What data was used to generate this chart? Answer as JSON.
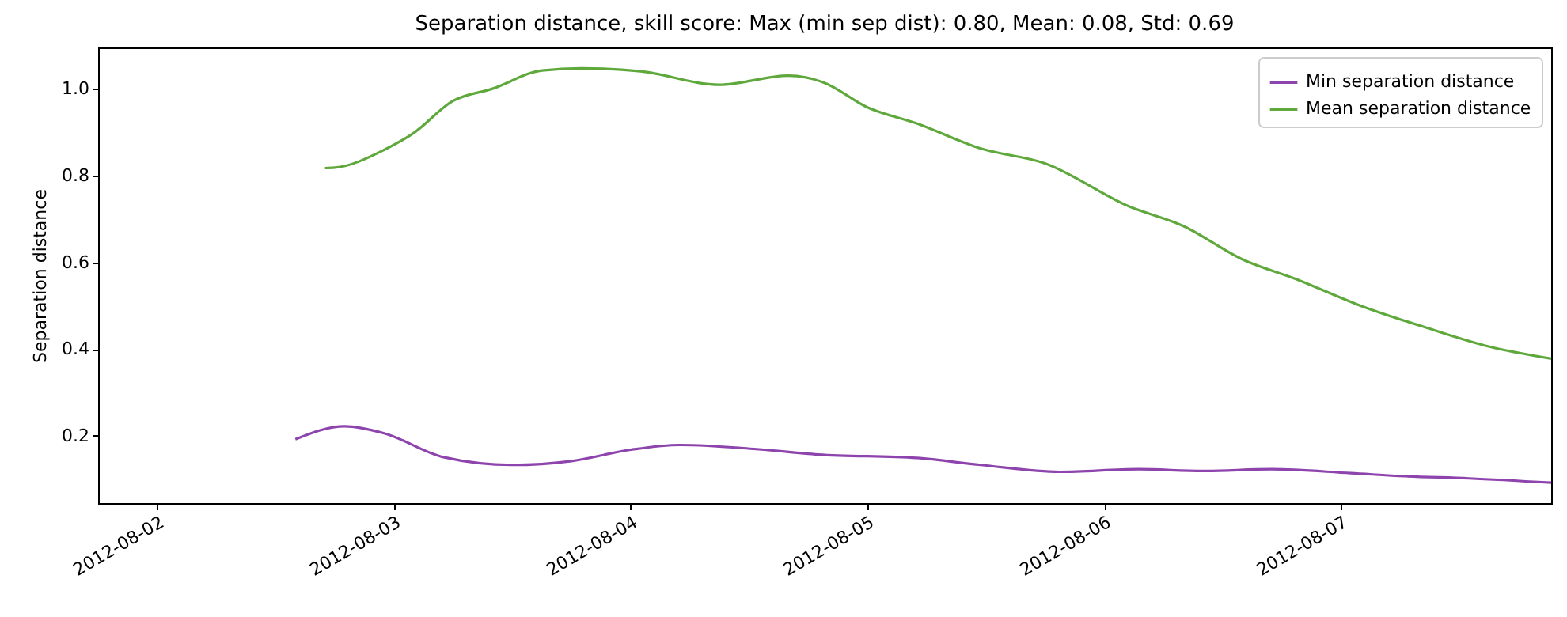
{
  "chart_data": {
    "type": "line",
    "title": "Separation distance, skill score: Max (min sep dist): 0.80, Mean: 0.08, Std: 0.69",
    "ylabel": "Separation distance",
    "xlim": [
      "2012-08-01T18:00",
      "2012-08-07T21:20"
    ],
    "xticks": [
      {
        "value": "2012-08-02",
        "label": "2012-08-02"
      },
      {
        "value": "2012-08-03",
        "label": "2012-08-03"
      },
      {
        "value": "2012-08-04",
        "label": "2012-08-04"
      },
      {
        "value": "2012-08-05",
        "label": "2012-08-05"
      },
      {
        "value": "2012-08-06",
        "label": "2012-08-06"
      },
      {
        "value": "2012-08-07",
        "label": "2012-08-07"
      }
    ],
    "ylim": [
      0.045,
      1.095
    ],
    "yticks": [
      0.2,
      0.4,
      0.6,
      0.8,
      {
        "value": 1,
        "label": "1.0"
      }
    ],
    "grid": false,
    "legend": "top right",
    "marker": "none",
    "line_style": "solid",
    "series": [
      {
        "name": "Min separation distance",
        "color": "#8e44ad",
        "x": [
          "2012-08-02T14:00",
          "2012-08-02T19:00",
          "2012-08-02T23:00",
          "2012-08-03T05:00",
          "2012-08-03T12:00",
          "2012-08-03T18:00",
          "2012-08-04T00:00",
          "2012-08-04T05:00",
          "2012-08-04T13:00",
          "2012-08-04T19:00",
          "2012-08-05T05:00",
          "2012-08-05T11:30",
          "2012-08-05T19:30",
          "2012-08-06T03:30",
          "2012-08-06T10:00",
          "2012-08-06T17:00",
          "2012-08-07T01:00",
          "2012-08-07T06:30",
          "2012-08-07T13:00",
          "2012-08-07T21:20"
        ],
        "values": [
          0.192,
          0.222,
          0.206,
          0.151,
          0.133,
          0.142,
          0.168,
          0.179,
          0.169,
          0.157,
          0.149,
          0.133,
          0.117,
          0.123,
          0.119,
          0.123,
          0.114,
          0.107,
          0.102,
          0.092
        ]
      },
      {
        "name": "Mean separation distance",
        "color": "#5ea83c",
        "x": [
          "2012-08-02T17:00",
          "2012-08-02T18:00",
          "2012-08-02T23:00",
          "2012-08-03T02:00",
          "2012-08-03T06:00",
          "2012-08-03T10:00",
          "2012-08-03T15:00",
          "2012-08-03T19:00",
          "2012-08-04T01:00",
          "2012-08-04T09:00",
          "2012-08-04T16:00",
          "2012-08-04T19:30",
          "2012-08-05T00:00",
          "2012-08-05T05:00",
          "2012-08-05T11:30",
          "2012-08-05T18:00",
          "2012-08-06T02:30",
          "2012-08-06T08:00",
          "2012-08-06T14:00",
          "2012-08-06T19:30",
          "2012-08-07T02:00",
          "2012-08-07T09:00",
          "2012-08-07T15:00",
          "2012-08-07T21:20"
        ],
        "values": [
          0.817,
          0.818,
          0.859,
          0.898,
          0.972,
          1.0,
          1.042,
          1.047,
          1.04,
          1.009,
          1.03,
          1.015,
          0.957,
          0.92,
          0.862,
          0.828,
          0.729,
          0.684,
          0.607,
          0.561,
          0.5,
          0.447,
          0.406,
          0.378
        ]
      }
    ]
  }
}
